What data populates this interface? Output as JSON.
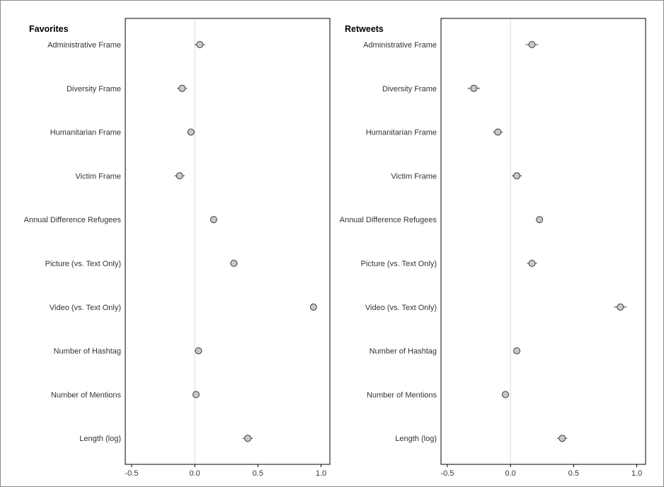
{
  "chart_data": [
    {
      "type": "scatter",
      "title": "Favorites",
      "xlabel": "",
      "ylabel": "",
      "xlim": [
        -0.55,
        1.07
      ],
      "xticks": [
        -0.5,
        0.0,
        0.5,
        1.0
      ],
      "xtick_labels": [
        "-0.5",
        "0.0",
        "0.5",
        "1.0"
      ],
      "reference_line": 0,
      "grid": false,
      "categories": [
        "Administrative Frame",
        "Diversity Frame",
        "Humanitarian Frame",
        "Victim Frame",
        "Annual Difference Refugees",
        "Picture (vs. Text Only)",
        "Video (vs. Text Only)",
        "Number of Hashtag",
        "Number of Mentions",
        "Length (log)"
      ],
      "estimates": [
        0.04,
        -0.1,
        -0.03,
        -0.12,
        0.15,
        0.31,
        0.94,
        0.03,
        0.01,
        0.42
      ],
      "ci_low": [
        0.0,
        -0.14,
        -0.06,
        -0.16,
        0.14,
        0.28,
        0.93,
        0.02,
        0.0,
        0.38
      ],
      "ci_high": [
        0.08,
        -0.06,
        0.0,
        -0.08,
        0.16,
        0.34,
        0.95,
        0.04,
        0.02,
        0.46
      ]
    },
    {
      "type": "scatter",
      "title": "Retweets",
      "xlabel": "",
      "ylabel": "",
      "xlim": [
        -0.55,
        1.07
      ],
      "xticks": [
        -0.5,
        0.0,
        0.5,
        1.0
      ],
      "xtick_labels": [
        "-0.5",
        "0.0",
        "0.5",
        "1.0"
      ],
      "reference_line": 0,
      "grid": false,
      "categories": [
        "Administrative Frame",
        "Diversity Frame",
        "Humanitarian Frame",
        "Victim Frame",
        "Annual Difference Refugees",
        "Picture (vs. Text Only)",
        "Video (vs. Text Only)",
        "Number of Hashtag",
        "Number of Mentions",
        "Length (log)"
      ],
      "estimates": [
        0.17,
        -0.29,
        -0.1,
        0.05,
        0.23,
        0.17,
        0.87,
        0.05,
        -0.04,
        0.41
      ],
      "ci_low": [
        0.12,
        -0.34,
        -0.14,
        0.01,
        0.21,
        0.13,
        0.82,
        0.04,
        -0.05,
        0.37
      ],
      "ci_high": [
        0.22,
        -0.24,
        -0.06,
        0.09,
        0.25,
        0.21,
        0.92,
        0.06,
        -0.03,
        0.45
      ]
    }
  ],
  "colors": {
    "point_fill": "#c8c8c8",
    "point_stroke": "#3a3a3a",
    "error_bar": "#3a3a3a",
    "reference_line": "#d9d9d9",
    "frame": "#000000"
  }
}
